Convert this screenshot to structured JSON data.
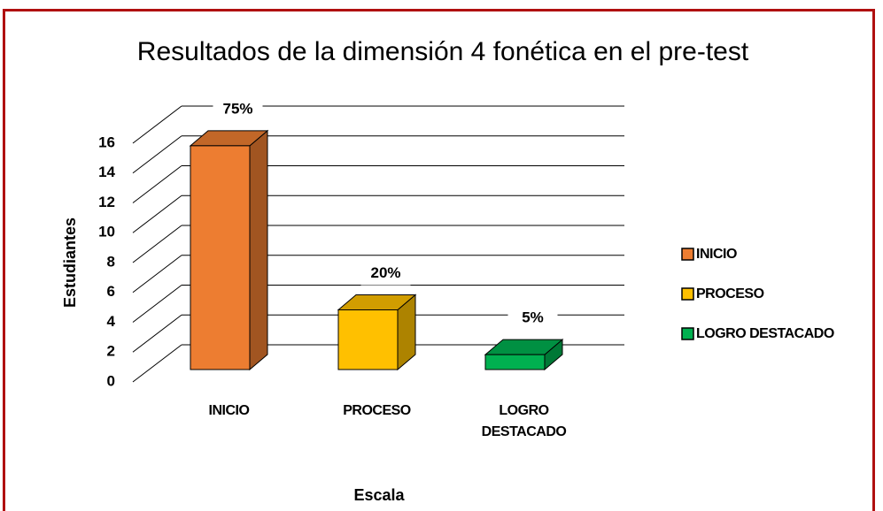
{
  "chart_data": {
    "type": "bar3d",
    "title": "Resultados de la dimensión 4 fonética en el pre-test",
    "y_label": "Estudiantes",
    "x_label": "Escala",
    "categories": [
      "INICIO",
      "PROCESO",
      "LOGRO DESTACADO"
    ],
    "values": [
      15,
      4,
      1
    ],
    "percent_labels": [
      "75%",
      "20%",
      "5%"
    ],
    "colors": [
      "#ed7d31",
      "#ffc000",
      "#00b050"
    ],
    "ylim": [
      0,
      16
    ],
    "yticks": [
      0,
      2,
      4,
      6,
      8,
      10,
      12,
      14,
      16
    ],
    "grid": true,
    "legend": "right"
  }
}
